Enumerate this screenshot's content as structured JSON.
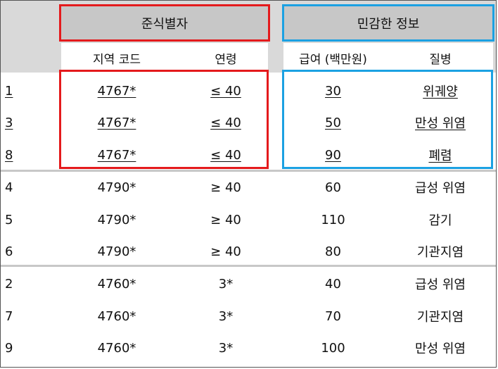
{
  "headers": {
    "quasi_identifier": "준식별자",
    "sensitive_info": "민감한 정보",
    "zip": "지역 코드",
    "age": "연령",
    "salary": "급여 (백만원)",
    "disease": "질병"
  },
  "colors": {
    "red_box": "#e41a1c",
    "blue_box": "#1ba1e2",
    "header_bg": "#d9d9d9"
  },
  "rows": [
    {
      "id": "1",
      "zip": "4767*",
      "age": "≤ 40",
      "salary": "30",
      "disease": "위궤양"
    },
    {
      "id": "3",
      "zip": "4767*",
      "age": "≤ 40",
      "salary": "50",
      "disease": "만성 위염"
    },
    {
      "id": "8",
      "zip": "4767*",
      "age": "≤ 40",
      "salary": "90",
      "disease": "폐렴"
    },
    {
      "id": "4",
      "zip": "4790*",
      "age": "≥ 40",
      "salary": "60",
      "disease": "급성 위염"
    },
    {
      "id": "5",
      "zip": "4790*",
      "age": "≥ 40",
      "salary": "110",
      "disease": "감기"
    },
    {
      "id": "6",
      "zip": "4790*",
      "age": "≥ 40",
      "salary": "80",
      "disease": "기관지염"
    },
    {
      "id": "2",
      "zip": "4760*",
      "age": "3*",
      "salary": "40",
      "disease": "급성 위염"
    },
    {
      "id": "7",
      "zip": "4760*",
      "age": "3*",
      "salary": "70",
      "disease": "기관지염"
    },
    {
      "id": "9",
      "zip": "4760*",
      "age": "3*",
      "salary": "100",
      "disease": "만성 위염"
    }
  ]
}
